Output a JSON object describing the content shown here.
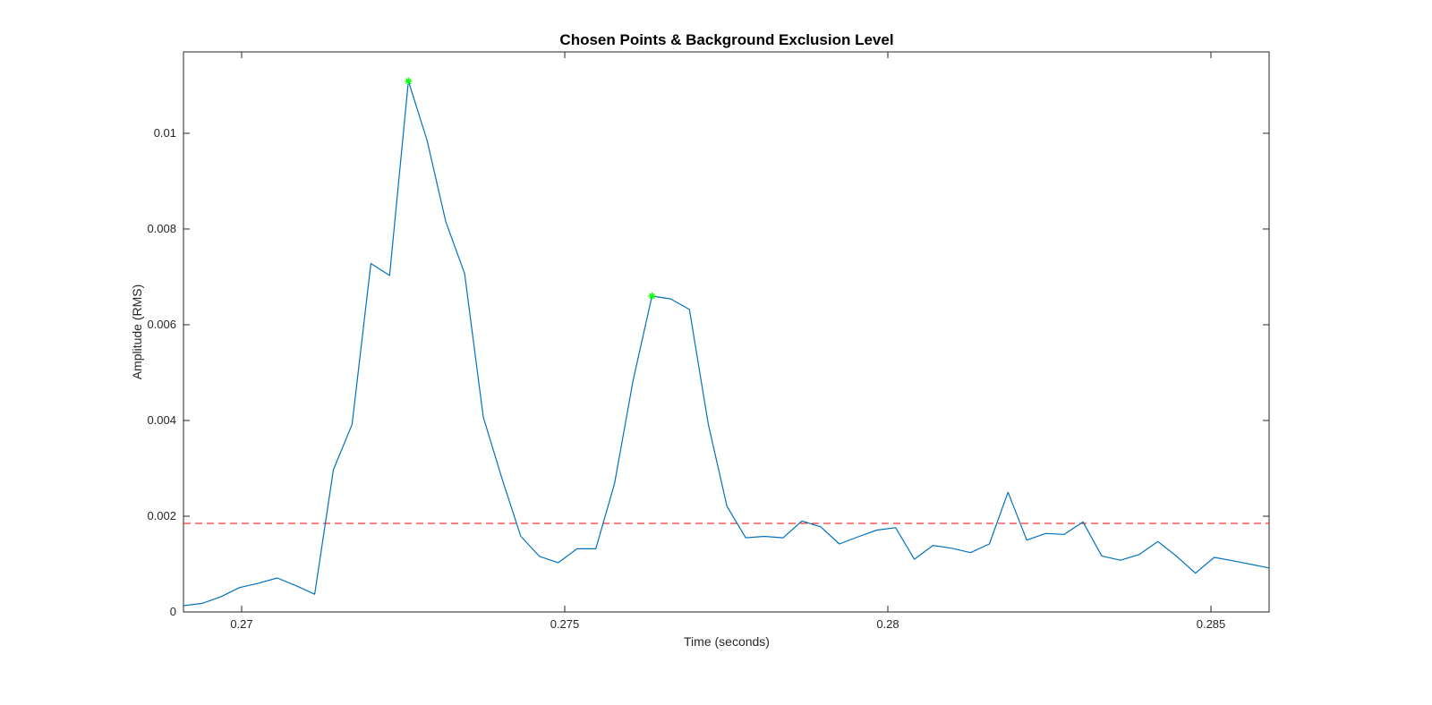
{
  "chart_data": {
    "type": "line",
    "title": "Chosen Points & Background Exclusion Level",
    "xlabel": "Time (seconds)",
    "ylabel": "Amplitude (RMS)",
    "xlim": [
      0.2691,
      0.2859
    ],
    "ylim": [
      0,
      0.0117
    ],
    "xticks": [
      0.27,
      0.275,
      0.28,
      0.285
    ],
    "xtick_labels": [
      "0.27",
      "0.275",
      "0.28",
      "0.285"
    ],
    "yticks": [
      0,
      0.002,
      0.004,
      0.006,
      0.008,
      0.01
    ],
    "ytick_labels": [
      "0",
      "0.002",
      "0.004",
      "0.006",
      "0.008",
      "0.01"
    ],
    "grid": false,
    "colors": {
      "line": "#0072bd",
      "threshold": "#ff0000",
      "peaks": "#00ff00",
      "axes": "#262626"
    },
    "series": [
      {
        "x": [
          0.2691,
          0.26939,
          0.26968,
          0.26997,
          0.27026,
          0.27055,
          0.27084,
          0.27113,
          0.27142,
          0.27171,
          0.272,
          0.27229,
          0.27258,
          0.27287,
          0.27316,
          0.27345,
          0.27374,
          0.27403,
          0.27432,
          0.27461,
          0.2749,
          0.27519,
          0.27548,
          0.27577,
          0.27606,
          0.27635,
          0.27664,
          0.27693,
          0.27722,
          0.27751,
          0.2778,
          0.27809,
          0.27838,
          0.27867,
          0.27896,
          0.27925,
          0.27954,
          0.27983,
          0.28012,
          0.28041,
          0.2807,
          0.28099,
          0.28128,
          0.28157,
          0.28186,
          0.28215,
          0.28244,
          0.28273,
          0.28302,
          0.28331,
          0.2836,
          0.28389,
          0.28418,
          0.28447,
          0.28476,
          0.28505,
          0.28534,
          0.2859
        ],
        "y": [
          0.00013,
          0.00018,
          0.00032,
          0.00051,
          0.0006,
          0.00071,
          0.00055,
          0.00037,
          0.00297,
          0.00392,
          0.00728,
          0.00703,
          0.01109,
          0.00985,
          0.00815,
          0.00707,
          0.00407,
          0.00278,
          0.00158,
          0.00116,
          0.00103,
          0.00132,
          0.00132,
          0.00268,
          0.00485,
          0.0066,
          0.00654,
          0.00632,
          0.00393,
          0.00221,
          0.00155,
          0.00158,
          0.00155,
          0.0019,
          0.00178,
          0.00142,
          0.00157,
          0.00171,
          0.00176,
          0.0011,
          0.00139,
          0.00133,
          0.00124,
          0.00142,
          0.0025,
          0.0015,
          0.00164,
          0.00162,
          0.00188,
          0.00117,
          0.00108,
          0.0012,
          0.00147,
          0.00116,
          0.00081,
          0.00114,
          0.00107,
          0.00092
        ]
      }
    ],
    "threshold": {
      "y": 0.00185,
      "style": "dashed"
    },
    "peaks": [
      {
        "x": 0.27258,
        "y": 0.01109
      },
      {
        "x": 0.27635,
        "y": 0.0066
      }
    ]
  }
}
